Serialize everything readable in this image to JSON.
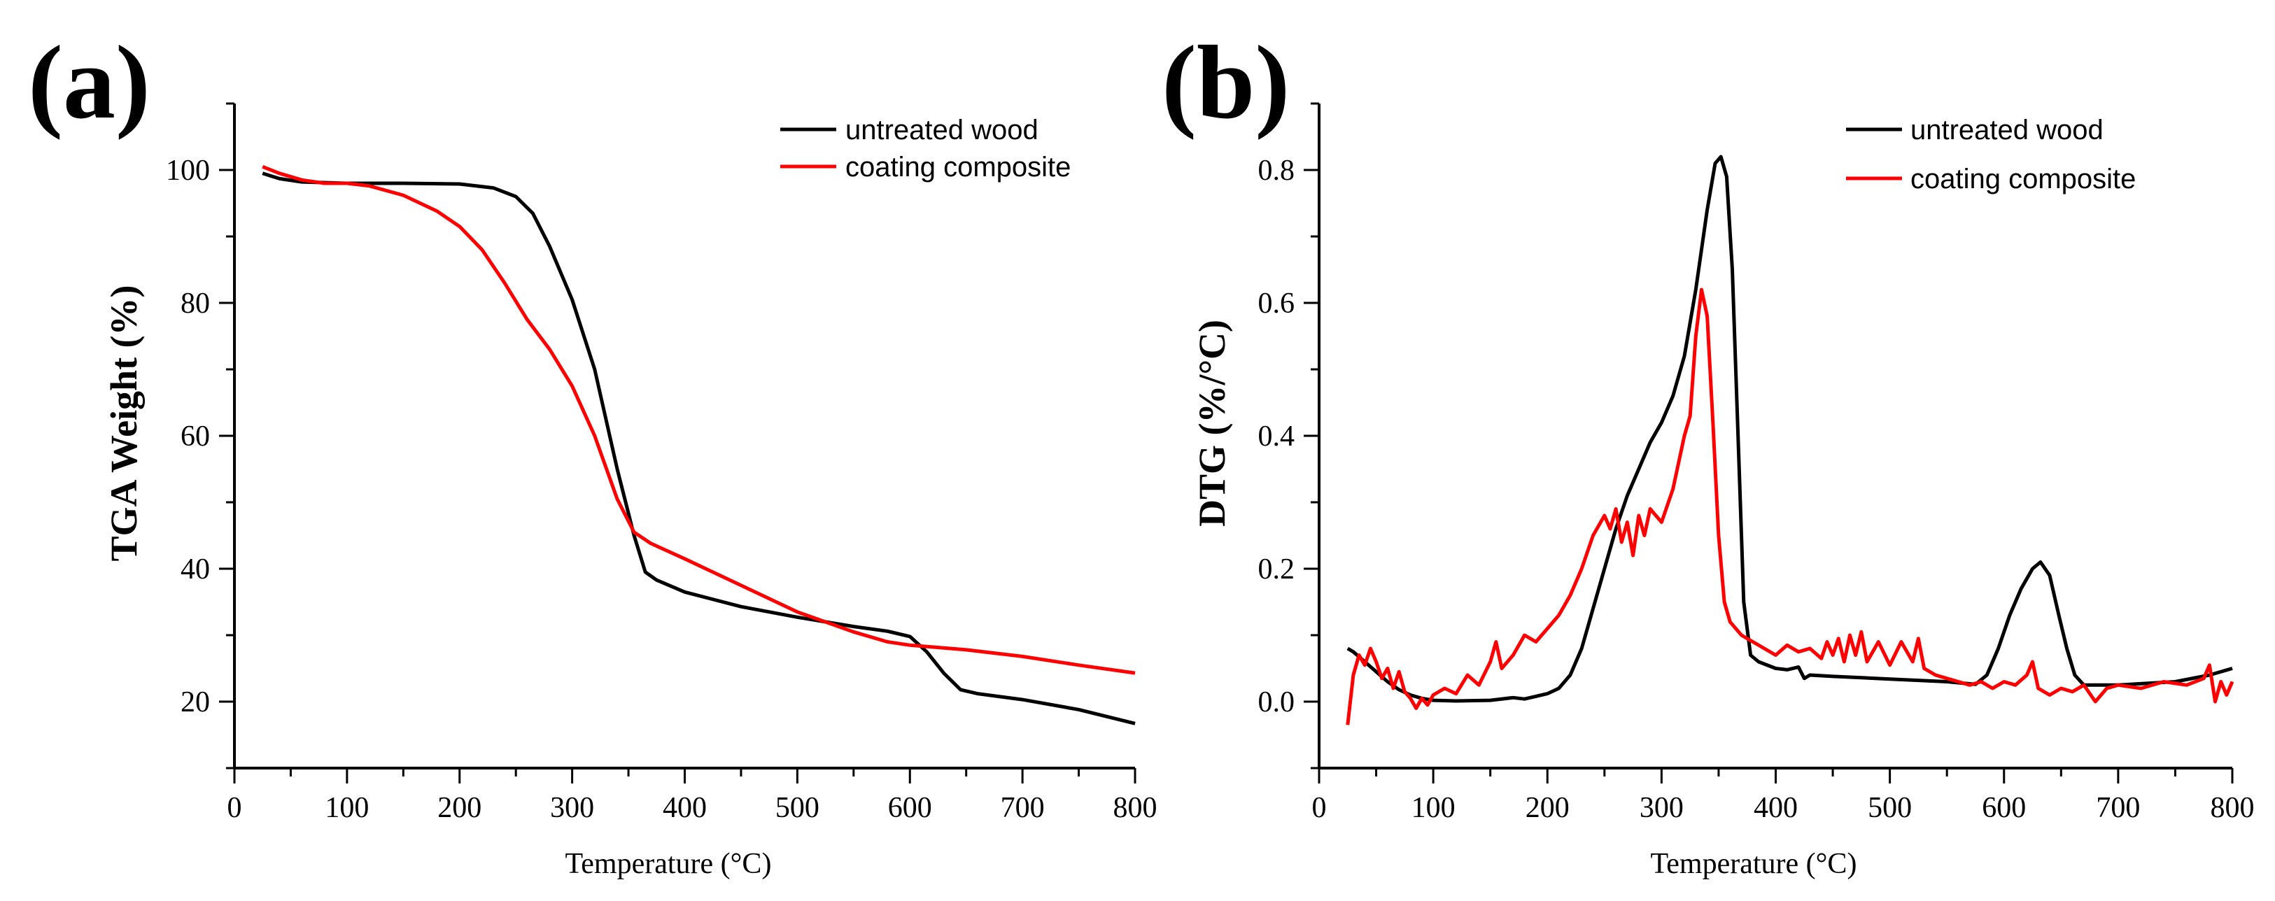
{
  "colors": {
    "untreated": "#000000",
    "coating": "#ff0000",
    "axis": "#000000",
    "background": "#ffffff"
  },
  "chart_data": [
    {
      "panel": "(a)",
      "type": "line",
      "xlabel": "Temperature (°C)",
      "ylabel": "TGA Weight (%)",
      "xlim": [
        0,
        800
      ],
      "ylim": [
        10,
        110
      ],
      "xticks": [
        0,
        100,
        200,
        300,
        400,
        500,
        600,
        700,
        800
      ],
      "yticks": [
        20,
        40,
        60,
        80,
        100
      ],
      "grid": false,
      "legend_position": "top-right",
      "series": [
        {
          "name": "untreated wood",
          "color": "#000000",
          "points": [
            [
              25,
              99.5
            ],
            [
              40,
              98.7
            ],
            [
              60,
              98.2
            ],
            [
              100,
              98.0
            ],
            [
              150,
              98.0
            ],
            [
              200,
              97.9
            ],
            [
              230,
              97.3
            ],
            [
              250,
              96.0
            ],
            [
              265,
              93.5
            ],
            [
              280,
              88.5
            ],
            [
              300,
              80.5
            ],
            [
              320,
              70.0
            ],
            [
              340,
              55.0
            ],
            [
              355,
              45.0
            ],
            [
              365,
              39.5
            ],
            [
              375,
              38.3
            ],
            [
              400,
              36.5
            ],
            [
              450,
              34.3
            ],
            [
              500,
              32.7
            ],
            [
              550,
              31.3
            ],
            [
              580,
              30.6
            ],
            [
              600,
              29.8
            ],
            [
              615,
              27.5
            ],
            [
              630,
              24.3
            ],
            [
              645,
              21.8
            ],
            [
              660,
              21.2
            ],
            [
              700,
              20.3
            ],
            [
              750,
              18.8
            ],
            [
              800,
              16.7
            ]
          ]
        },
        {
          "name": "coating composite",
          "color": "#ff0000",
          "points": [
            [
              25,
              100.5
            ],
            [
              40,
              99.5
            ],
            [
              60,
              98.5
            ],
            [
              80,
              98.0
            ],
            [
              100,
              98.0
            ],
            [
              120,
              97.6
            ],
            [
              150,
              96.2
            ],
            [
              180,
              93.8
            ],
            [
              200,
              91.5
            ],
            [
              220,
              88.0
            ],
            [
              240,
              83.0
            ],
            [
              260,
              77.5
            ],
            [
              280,
              73.0
            ],
            [
              300,
              67.5
            ],
            [
              320,
              60.0
            ],
            [
              340,
              50.5
            ],
            [
              355,
              45.5
            ],
            [
              370,
              43.8
            ],
            [
              400,
              41.5
            ],
            [
              450,
              37.5
            ],
            [
              500,
              33.5
            ],
            [
              550,
              30.5
            ],
            [
              580,
              29.0
            ],
            [
              600,
              28.5
            ],
            [
              650,
              27.8
            ],
            [
              700,
              26.8
            ],
            [
              750,
              25.5
            ],
            [
              800,
              24.3
            ]
          ]
        }
      ]
    },
    {
      "panel": "(b)",
      "type": "line",
      "xlabel": "Temperature (°C)",
      "ylabel": "DTG (%/°C)",
      "xlim": [
        0,
        800
      ],
      "ylim": [
        -0.1,
        0.9
      ],
      "xticks": [
        0,
        100,
        200,
        300,
        400,
        500,
        600,
        700,
        800
      ],
      "yticks": [
        0.0,
        0.2,
        0.4,
        0.6,
        0.8
      ],
      "grid": false,
      "legend_position": "top-right",
      "series": [
        {
          "name": "untreated wood",
          "color": "#000000",
          "points": [
            [
              25,
              0.08
            ],
            [
              30,
              0.075
            ],
            [
              40,
              0.06
            ],
            [
              50,
              0.045
            ],
            [
              60,
              0.03
            ],
            [
              70,
              0.018
            ],
            [
              80,
              0.01
            ],
            [
              90,
              0.005
            ],
            [
              100,
              0.002
            ],
            [
              120,
              0.001
            ],
            [
              150,
              0.002
            ],
            [
              170,
              0.006
            ],
            [
              180,
              0.004
            ],
            [
              190,
              0.008
            ],
            [
              200,
              0.012
            ],
            [
              210,
              0.02
            ],
            [
              220,
              0.04
            ],
            [
              230,
              0.08
            ],
            [
              240,
              0.14
            ],
            [
              250,
              0.2
            ],
            [
              260,
              0.26
            ],
            [
              270,
              0.31
            ],
            [
              280,
              0.35
            ],
            [
              290,
              0.39
            ],
            [
              300,
              0.42
            ],
            [
              310,
              0.46
            ],
            [
              320,
              0.52
            ],
            [
              330,
              0.62
            ],
            [
              340,
              0.74
            ],
            [
              347,
              0.81
            ],
            [
              352,
              0.82
            ],
            [
              357,
              0.79
            ],
            [
              362,
              0.65
            ],
            [
              367,
              0.4
            ],
            [
              372,
              0.15
            ],
            [
              378,
              0.07
            ],
            [
              385,
              0.06
            ],
            [
              400,
              0.05
            ],
            [
              410,
              0.048
            ],
            [
              420,
              0.052
            ],
            [
              425,
              0.035
            ],
            [
              430,
              0.04
            ],
            [
              450,
              0.038
            ],
            [
              500,
              0.034
            ],
            [
              550,
              0.03
            ],
            [
              575,
              0.026
            ],
            [
              585,
              0.04
            ],
            [
              595,
              0.08
            ],
            [
              605,
              0.13
            ],
            [
              615,
              0.17
            ],
            [
              625,
              0.2
            ],
            [
              632,
              0.21
            ],
            [
              640,
              0.19
            ],
            [
              648,
              0.13
            ],
            [
              655,
              0.08
            ],
            [
              662,
              0.04
            ],
            [
              670,
              0.025
            ],
            [
              700,
              0.025
            ],
            [
              750,
              0.03
            ],
            [
              780,
              0.04
            ],
            [
              800,
              0.05
            ]
          ]
        },
        {
          "name": "coating composite",
          "color": "#ff0000",
          "points": [
            [
              25,
              -0.035
            ],
            [
              30,
              0.04
            ],
            [
              35,
              0.07
            ],
            [
              40,
              0.055
            ],
            [
              45,
              0.08
            ],
            [
              50,
              0.06
            ],
            [
              55,
              0.035
            ],
            [
              60,
              0.05
            ],
            [
              65,
              0.02
            ],
            [
              70,
              0.045
            ],
            [
              75,
              0.015
            ],
            [
              80,
              0.005
            ],
            [
              85,
              -0.01
            ],
            [
              90,
              0.005
            ],
            [
              95,
              -0.005
            ],
            [
              100,
              0.01
            ],
            [
              110,
              0.02
            ],
            [
              120,
              0.012
            ],
            [
              130,
              0.04
            ],
            [
              140,
              0.025
            ],
            [
              150,
              0.06
            ],
            [
              155,
              0.09
            ],
            [
              160,
              0.05
            ],
            [
              170,
              0.07
            ],
            [
              180,
              0.1
            ],
            [
              190,
              0.09
            ],
            [
              200,
              0.11
            ],
            [
              210,
              0.13
            ],
            [
              220,
              0.16
            ],
            [
              230,
              0.2
            ],
            [
              240,
              0.25
            ],
            [
              250,
              0.28
            ],
            [
              255,
              0.26
            ],
            [
              260,
              0.29
            ],
            [
              265,
              0.24
            ],
            [
              270,
              0.27
            ],
            [
              275,
              0.22
            ],
            [
              280,
              0.28
            ],
            [
              285,
              0.25
            ],
            [
              290,
              0.29
            ],
            [
              300,
              0.27
            ],
            [
              310,
              0.32
            ],
            [
              320,
              0.4
            ],
            [
              325,
              0.43
            ],
            [
              330,
              0.55
            ],
            [
              335,
              0.62
            ],
            [
              340,
              0.58
            ],
            [
              345,
              0.42
            ],
            [
              350,
              0.25
            ],
            [
              355,
              0.15
            ],
            [
              360,
              0.12
            ],
            [
              370,
              0.1
            ],
            [
              380,
              0.09
            ],
            [
              390,
              0.08
            ],
            [
              400,
              0.07
            ],
            [
              410,
              0.085
            ],
            [
              420,
              0.075
            ],
            [
              430,
              0.08
            ],
            [
              440,
              0.065
            ],
            [
              445,
              0.09
            ],
            [
              450,
              0.07
            ],
            [
              455,
              0.095
            ],
            [
              460,
              0.06
            ],
            [
              465,
              0.1
            ],
            [
              470,
              0.07
            ],
            [
              475,
              0.105
            ],
            [
              480,
              0.06
            ],
            [
              490,
              0.09
            ],
            [
              500,
              0.055
            ],
            [
              510,
              0.09
            ],
            [
              520,
              0.06
            ],
            [
              525,
              0.095
            ],
            [
              530,
              0.05
            ],
            [
              540,
              0.04
            ],
            [
              550,
              0.035
            ],
            [
              560,
              0.03
            ],
            [
              570,
              0.025
            ],
            [
              580,
              0.03
            ],
            [
              590,
              0.02
            ],
            [
              600,
              0.03
            ],
            [
              610,
              0.025
            ],
            [
              620,
              0.04
            ],
            [
              625,
              0.06
            ],
            [
              630,
              0.02
            ],
            [
              640,
              0.01
            ],
            [
              650,
              0.02
            ],
            [
              660,
              0.015
            ],
            [
              670,
              0.025
            ],
            [
              680,
              0.0
            ],
            [
              690,
              0.02
            ],
            [
              700,
              0.025
            ],
            [
              720,
              0.02
            ],
            [
              740,
              0.03
            ],
            [
              760,
              0.025
            ],
            [
              775,
              0.035
            ],
            [
              780,
              0.055
            ],
            [
              785,
              0.0
            ],
            [
              790,
              0.03
            ],
            [
              795,
              0.01
            ],
            [
              800,
              0.03
            ]
          ]
        }
      ]
    }
  ]
}
